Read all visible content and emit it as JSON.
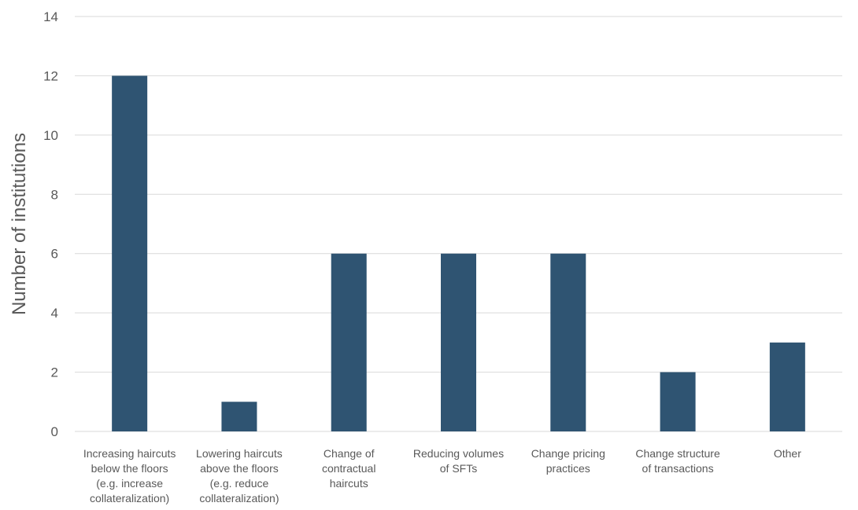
{
  "colors": {
    "bar": "#2f5472",
    "grid": "#d9d9d9",
    "text": "#595959"
  },
  "chart_data": {
    "type": "bar",
    "title": "",
    "xlabel": "",
    "ylabel": "Number of institutions",
    "ylim": [
      0,
      14
    ],
    "yticks": [
      0,
      2,
      4,
      6,
      8,
      10,
      12,
      14
    ],
    "grid": true,
    "legend": "none",
    "categories": [
      [
        "Increasing haircuts",
        "below the floors",
        "(e.g. increase",
        "collateralization)"
      ],
      [
        "Lowering haircuts",
        "above the floors",
        "(e.g. reduce",
        "collateralization)"
      ],
      [
        "Change of",
        "contractual",
        "haircuts"
      ],
      [
        "Reducing volumes",
        "of SFTs"
      ],
      [
        "Change pricing",
        "practices"
      ],
      [
        "Change structure",
        "of transactions"
      ],
      [
        "Other"
      ]
    ],
    "values": [
      12,
      1,
      6,
      6,
      6,
      2,
      3
    ]
  }
}
